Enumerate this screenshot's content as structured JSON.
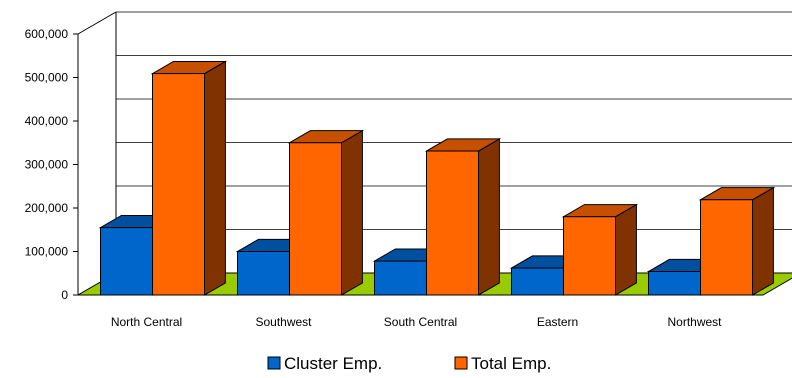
{
  "chart_data": {
    "type": "bar",
    "style": "3d-clustered-column",
    "categories": [
      "North Central",
      "Southwest",
      "South Central",
      "Eastern",
      "Northwest"
    ],
    "series": [
      {
        "name": "Cluster Emp.",
        "values": [
          155000,
          100000,
          78000,
          62000,
          54000
        ],
        "color": "#0066CC"
      },
      {
        "name": "Total Emp.",
        "values": [
          509000,
          350000,
          331000,
          180000,
          219000
        ],
        "color": "#FF6600"
      }
    ],
    "yticks": [
      "0",
      "100,000",
      "200,000",
      "300,000",
      "400,000",
      "500,000",
      "600,000"
    ],
    "ylim": [
      0,
      600000
    ],
    "grid": true,
    "legend_position": "bottom",
    "colors": {
      "floor": "#99CC00",
      "gridline": "#000000"
    }
  }
}
